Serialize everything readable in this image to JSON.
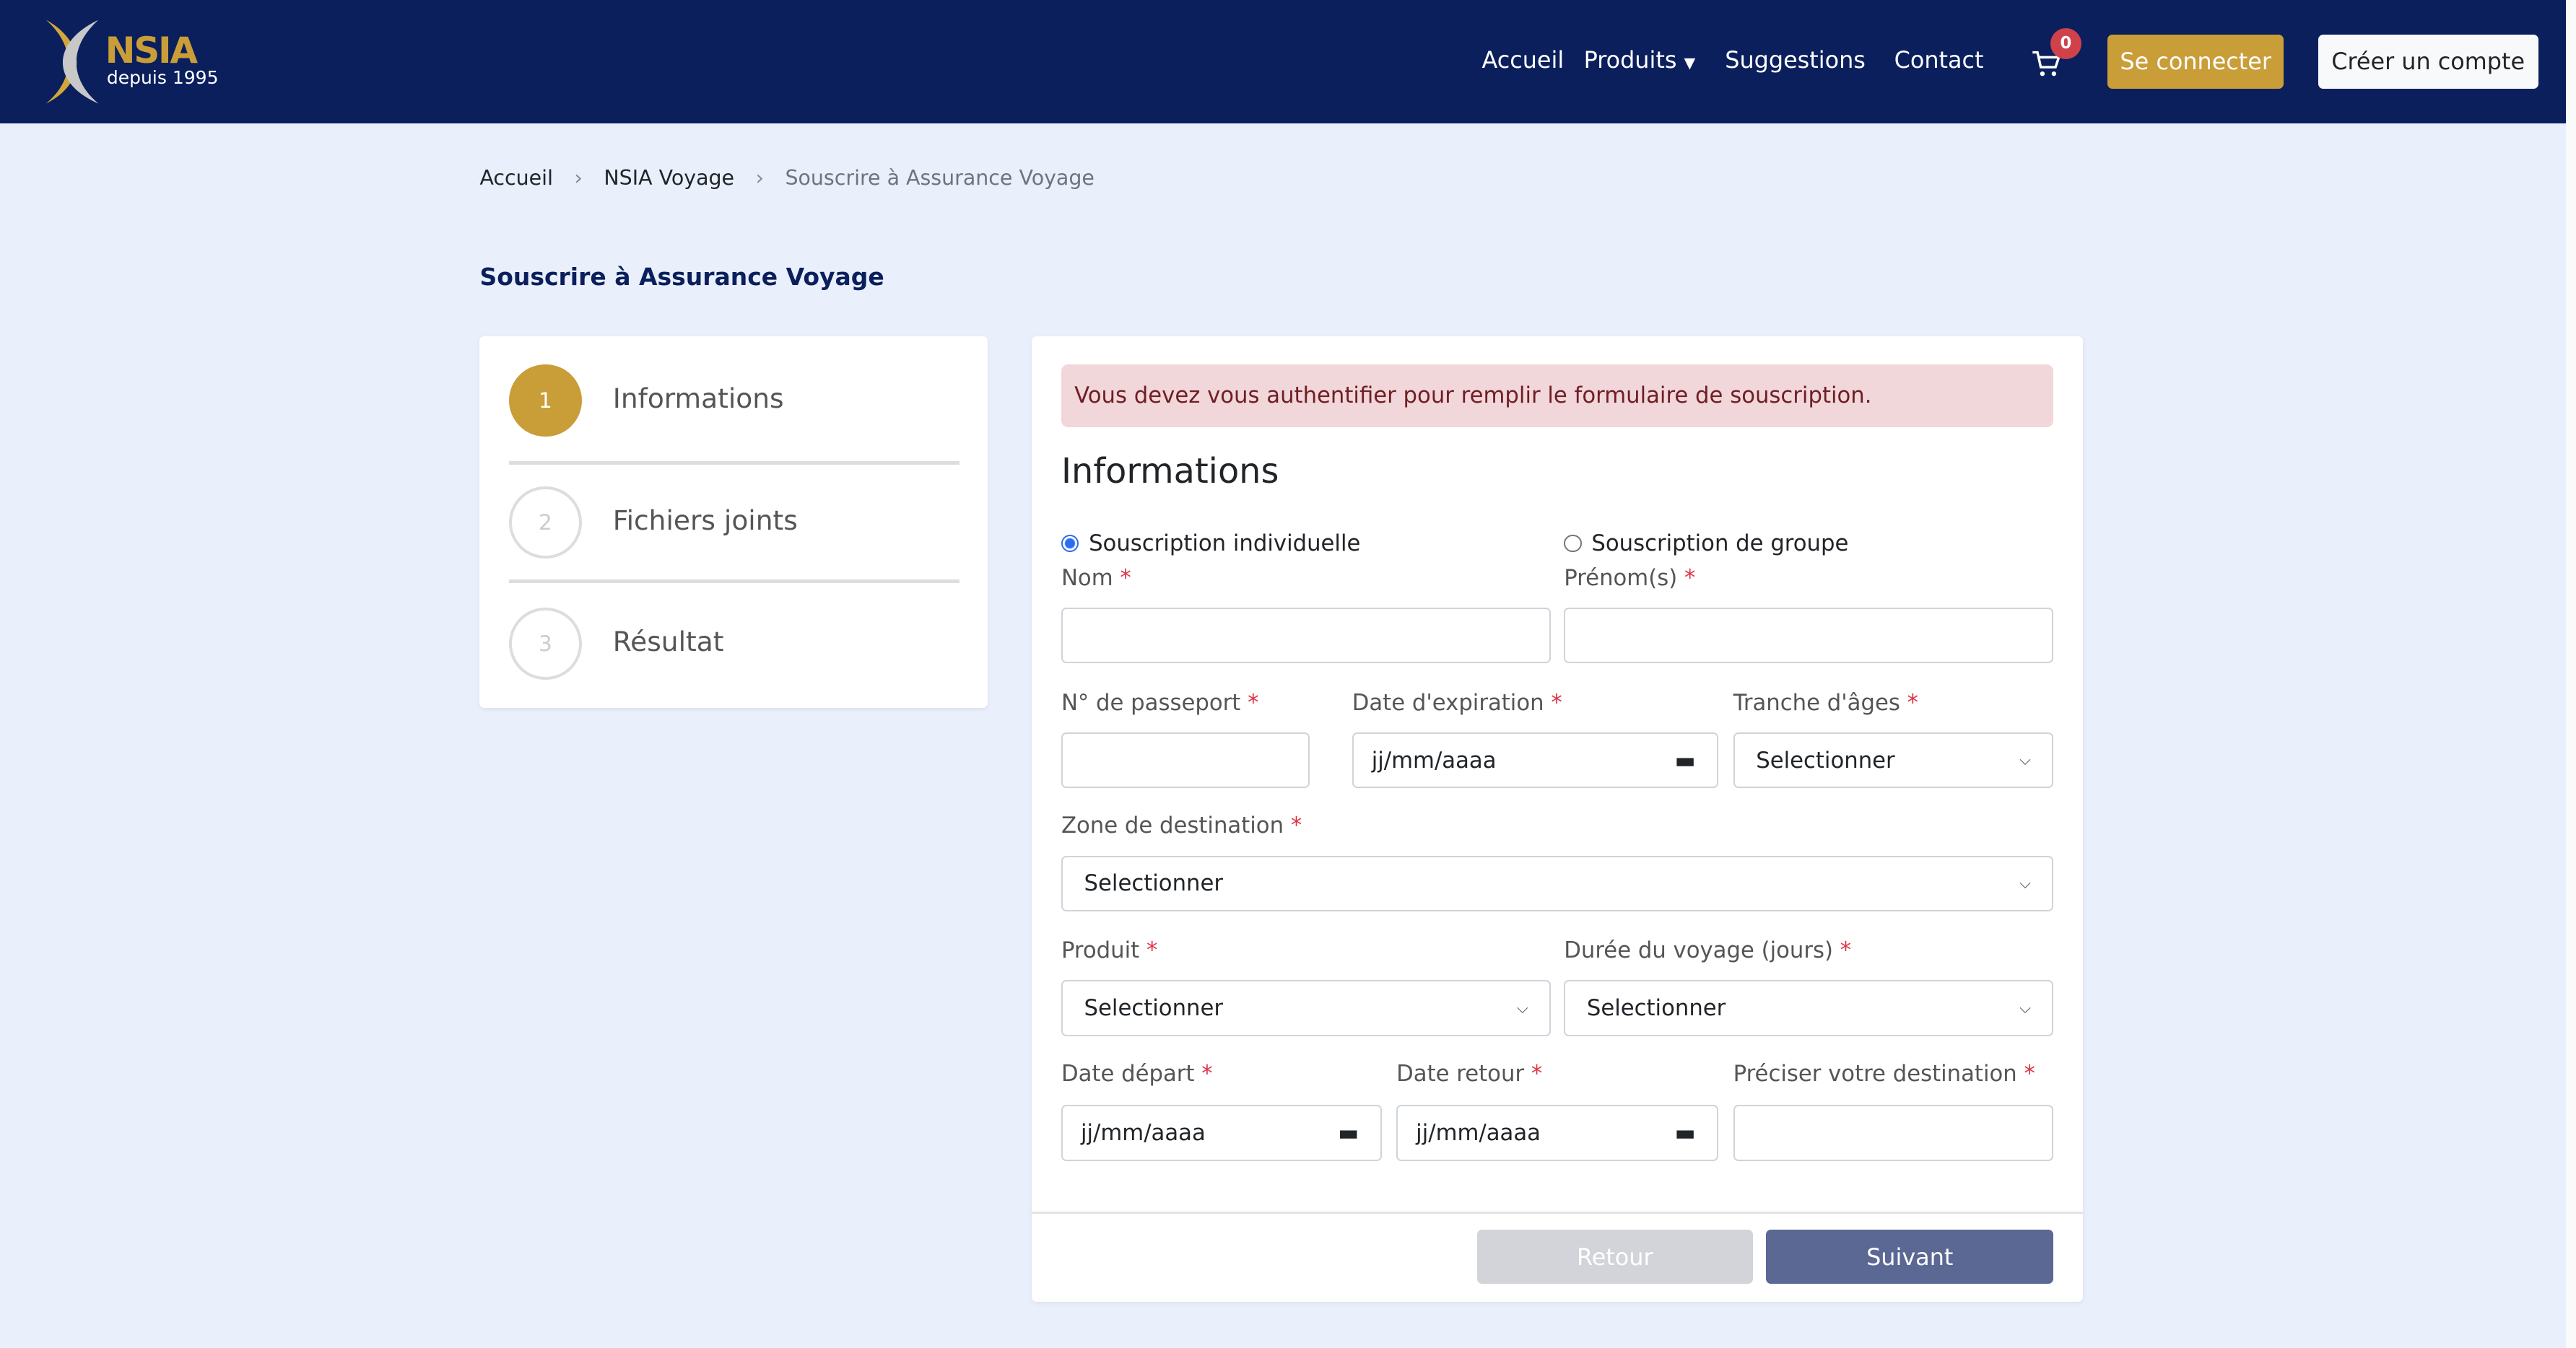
{
  "header": {
    "logo_text": "NSIA",
    "logo_sub": "depuis 1995",
    "nav": [
      "Accueil",
      "Produits",
      "Suggestions",
      "Contact"
    ],
    "cart_count": "0",
    "login": "Se connecter",
    "signup": "Créer un compte"
  },
  "breadcrumb": [
    "Accueil",
    "NSIA Voyage",
    "Souscrire à Assurance Voyage"
  ],
  "page_title": "Souscrire à Assurance Voyage",
  "steps": [
    {
      "num": "1",
      "label": "Informations",
      "active": true
    },
    {
      "num": "2",
      "label": "Fichiers joints",
      "active": false
    },
    {
      "num": "3",
      "label": "Résultat",
      "active": false
    }
  ],
  "form": {
    "alert": "Vous devez vous authentifier pour remplir le formulaire de souscription.",
    "heading": "Informations",
    "radio_individual": "Souscription individuelle",
    "radio_group": "Souscription de groupe",
    "radio_selected": "individual",
    "nom": "Nom",
    "prenom": "Prénom(s)",
    "passport": "N° de passeport",
    "date_expiration": "Date d'expiration",
    "tranche": "Tranche d'âges",
    "zone": "Zone de destination",
    "produit": "Produit",
    "duree": "Durée du voyage (jours)",
    "date_depart": "Date départ",
    "date_retour": "Date retour",
    "preciser": "Préciser votre destination",
    "date_placeholder": "jj/mm/aaaa",
    "select_placeholder": "Selectionner",
    "required_mark": "*",
    "back": "Retour",
    "next": "Suivant"
  },
  "colors": {
    "nav": "#0a1f5c",
    "gold": "#c99d38",
    "primary_button": "#5b6894",
    "alert_bg": "#f2d7da"
  }
}
